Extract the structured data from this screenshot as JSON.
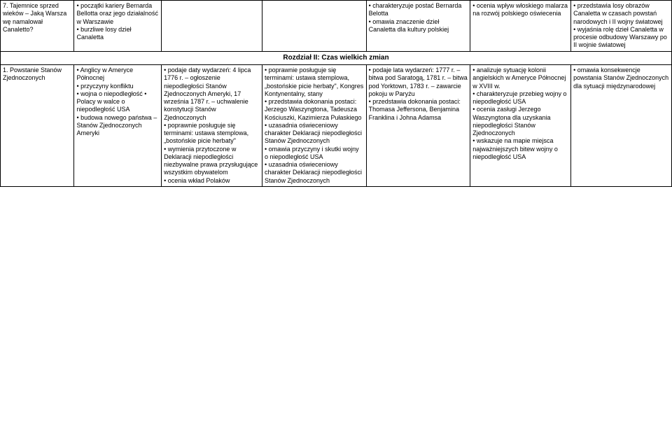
{
  "row1": {
    "c0": "7. Tajemnice sprzed wieków – Jaką Warsza wę namalował Canaletto?",
    "c1": "• początki kariery Bernarda Bellotta oraz jego działalność w Warszawie\n• burzliwe losy dzieł Canaletta",
    "c2": "",
    "c3": "",
    "c4": "• charakteryzuje postać Bernarda Belotta\n• omawia znaczenie dzieł Canaletta dla kultury polskiej",
    "c5": "• ocenia wpływ włoskiego malarza na rozwój polskiego oświecenia",
    "c6": "• przedstawia losy obrazów Canaletta w czasach powstań narodowych i II wojny światowej\n• wyjaśnia rolę dzieł Canaletta w procesie odbudowy Warszawy po II wojnie światowej"
  },
  "sectionTitle": "Rozdział II: Czas wielkich zmian",
  "row2": {
    "c0": "1. Powstanie Stanów Zjednoczonych",
    "c1": "• Anglicy w Ameryce Północnej\n• przyczyny konfliktu\n• wojna o niepodległość • Polacy w walce o niepodległość USA\n• budowa nowego państwa – Stanów Zjednoczonych Ameryki",
    "c2": "• podaje daty wydarzeń: 4 lipca 1776 r. – ogłoszenie niepodległości Stanów Zjednoczonych Ameryki, 17 września 1787 r. – uchwalenie konstytucji Stanów Zjednoczonych\n• poprawnie posługuje się terminami: ustawa stemplowa, „bostońskie picie herbaty\"\n• wymienia przytoczone w Deklaracji niepodległości niezbywalne prawa przysługujące wszystkim obywatelom\n• ocenia wkład Polaków",
    "c3": "• poprawnie posługuje się terminami: ustawa stemplowa, „bostońskie picie herbaty\", Kongres Kontynentalny, stany\n• przedstawia dokonania postaci: Jerzego Waszyngtona, Tadeusza Kościuszki, Kazimierza Pułaskiego\n• uzasadnia oświeceniowy charakter Deklaracji niepodległości Stanów Zjednoczonych\n• omawia przyczyny i skutki wojny o niepodległość USA\n• uzasadnia oświeceniowy charakter Deklaracji niepodległości Stanów Zjednoczonych",
    "c4": "• podaje lata wydarzeń: 1777 r. – bitwa pod Saratogą, 1781 r. – bitwa pod Yorktown, 1783 r. – zawarcie pokoju w Paryżu\n• przedstawia dokonania postaci: Thomasa Jeffersona, Benjamina Franklina i Johna Adamsa",
    "c5": "• analizuje sytuację kolonii angielskich w Ameryce Północnej w XVIII w.\n• charakteryzuje przebieg wojny o niepodległość USA\n• ocenia zasługi Jerzego Waszyngtona dla uzyskania niepodległości Stanów Zjednoczonych\n• wskazuje na mapie miejsca najważniejszych bitew wojny o niepodległość USA",
    "c6": "• omawia konsekwencje powstania Stanów Zjednoczonych dla sytuacji międzynarodowej"
  }
}
